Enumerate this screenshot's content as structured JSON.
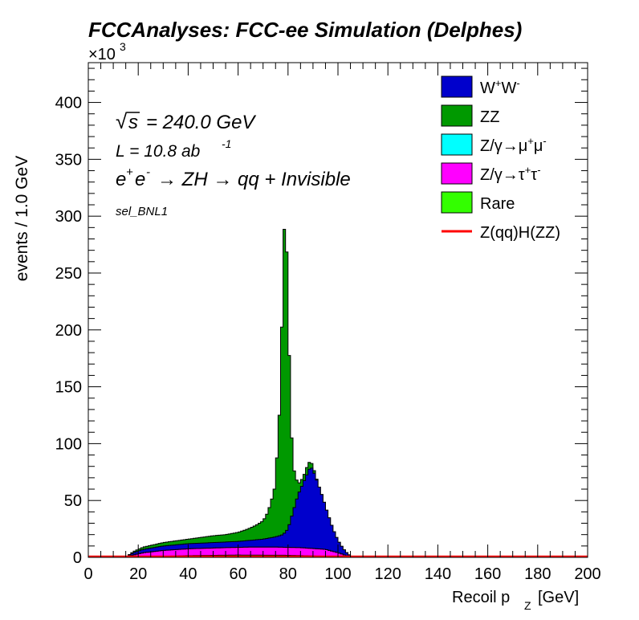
{
  "chart_data": {
    "type": "area",
    "title": "FCCAnalyses: FCC-ee Simulation (Delphes)",
    "xlabel_main": "Recoil p",
    "xlabel_sub": "Z",
    "xlabel_unit": "[GeV]",
    "ylabel": "events / 1.0 GeV",
    "y_multiplier": "×10",
    "y_multiplier_exp": "3",
    "xlim": [
      0,
      200
    ],
    "ylim": [
      0,
      435
    ],
    "xticks": [
      0,
      20,
      40,
      60,
      80,
      100,
      120,
      140,
      160,
      180,
      200
    ],
    "yticks": [
      0,
      50,
      100,
      150,
      200,
      250,
      300,
      350,
      400
    ],
    "stacked": true,
    "annotations": {
      "sqrt_symbol": "√",
      "sqrt_s": "s",
      "energy": "= 240.0 GeV",
      "lumi_prefix": "L = 10.8 ab",
      "lumi_exp": "-1",
      "process_e1": "e",
      "process_e1_sup": "+",
      "process_e2": "e",
      "process_e2_sup": "-",
      "process_rest": "→ ZH → qq + Invisible",
      "selection": "sel_BNL1"
    },
    "legend_position": "top-right",
    "legend": [
      {
        "base": "W",
        "sup1": "+",
        "mid": "W",
        "sup2": "-",
        "color": "#0000cc",
        "kind": "box"
      },
      {
        "base": "ZZ",
        "color": "#009900",
        "kind": "box"
      },
      {
        "base": "Z/γ→μ",
        "sup1": "+",
        "mid": "μ",
        "sup2": "-",
        "color": "#00ffff",
        "kind": "box"
      },
      {
        "base": "Z/γ→τ",
        "sup1": "+",
        "mid": "τ",
        "sup2": "-",
        "color": "#ff00ff",
        "kind": "box"
      },
      {
        "base": "Rare",
        "color": "#33ff00",
        "kind": "box"
      },
      {
        "base": "Z(qq)H(ZZ)",
        "color": "#ff0000",
        "kind": "line"
      }
    ],
    "series_points": {
      "rare": [
        [
          0,
          0
        ],
        [
          15,
          0
        ],
        [
          20,
          0.3
        ],
        [
          40,
          1.5
        ],
        [
          60,
          2
        ],
        [
          80,
          1.8
        ],
        [
          95,
          1
        ],
        [
          105,
          0
        ],
        [
          200,
          0
        ]
      ],
      "tautau": [
        [
          0,
          0
        ],
        [
          15,
          0
        ],
        [
          18,
          2
        ],
        [
          22,
          4
        ],
        [
          30,
          6
        ],
        [
          40,
          7.5
        ],
        [
          55,
          8.5
        ],
        [
          65,
          9
        ],
        [
          75,
          9
        ],
        [
          85,
          8.5
        ],
        [
          95,
          7
        ],
        [
          100,
          4
        ],
        [
          104,
          1
        ],
        [
          106,
          0
        ],
        [
          200,
          0
        ]
      ],
      "mumu": [
        [
          0,
          0
        ],
        [
          15,
          0
        ],
        [
          18,
          2
        ],
        [
          22,
          4
        ],
        [
          30,
          6
        ],
        [
          40,
          7.5
        ],
        [
          55,
          8.5
        ],
        [
          65,
          9
        ],
        [
          75,
          9
        ],
        [
          85,
          8.5
        ],
        [
          95,
          7
        ],
        [
          100,
          4
        ],
        [
          104,
          1
        ],
        [
          106,
          0
        ],
        [
          200,
          0
        ]
      ],
      "ww": [
        [
          0,
          0
        ],
        [
          15,
          0
        ],
        [
          18,
          4
        ],
        [
          22,
          7
        ],
        [
          30,
          10
        ],
        [
          40,
          12
        ],
        [
          50,
          13
        ],
        [
          60,
          14
        ],
        [
          65,
          15
        ],
        [
          70,
          16
        ],
        [
          75,
          18
        ],
        [
          78,
          20
        ],
        [
          80,
          25
        ],
        [
          82,
          40
        ],
        [
          84,
          55
        ],
        [
          86,
          65
        ],
        [
          88,
          75
        ],
        [
          89,
          80
        ],
        [
          90,
          77
        ],
        [
          92,
          65
        ],
        [
          94,
          52
        ],
        [
          96,
          38
        ],
        [
          98,
          25
        ],
        [
          100,
          15
        ],
        [
          102,
          8
        ],
        [
          104,
          3
        ],
        [
          106,
          0
        ],
        [
          200,
          0
        ]
      ],
      "zz": [
        [
          0,
          0
        ],
        [
          15,
          0
        ],
        [
          18,
          5
        ],
        [
          22,
          9
        ],
        [
          30,
          13
        ],
        [
          40,
          16
        ],
        [
          50,
          19
        ],
        [
          55,
          20
        ],
        [
          60,
          22
        ],
        [
          64,
          25
        ],
        [
          67,
          28
        ],
        [
          70,
          32
        ],
        [
          72,
          40
        ],
        [
          74,
          55
        ],
        [
          75,
          65
        ],
        [
          76,
          110
        ],
        [
          77,
          140
        ],
        [
          78,
          265
        ],
        [
          79,
          312
        ],
        [
          80,
          225
        ],
        [
          81,
          130
        ],
        [
          82,
          80
        ],
        [
          84,
          64
        ],
        [
          86,
          70
        ],
        [
          88,
          82
        ],
        [
          89,
          85
        ],
        [
          90,
          80
        ],
        [
          92,
          65
        ],
        [
          94,
          52
        ],
        [
          96,
          38
        ],
        [
          98,
          25
        ],
        [
          100,
          15
        ],
        [
          102,
          8
        ],
        [
          104,
          3
        ],
        [
          106,
          0
        ],
        [
          200,
          0
        ]
      ],
      "signal": [
        [
          0,
          0
        ],
        [
          200,
          0
        ]
      ]
    }
  }
}
